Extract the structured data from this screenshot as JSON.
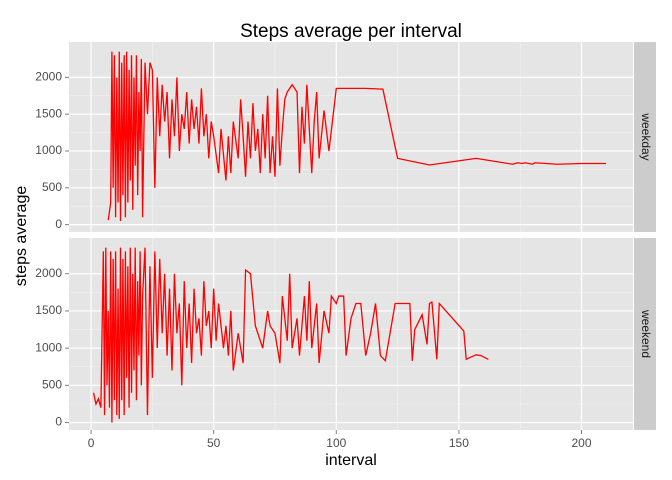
{
  "chart_data": {
    "type": "line",
    "title": "Steps average per interval",
    "x_label": "interval",
    "y_label": "steps average",
    "color": "#ff0000",
    "grid": true,
    "xlim": [
      -9,
      221
    ],
    "ylim": [
      -100,
      2480
    ],
    "xticks": [
      0,
      50,
      100,
      150,
      200
    ],
    "yticks": [
      0,
      500,
      1000,
      1500,
      2000
    ],
    "panels": [
      {
        "name": "weekday",
        "x": [
          7,
          8,
          8.5,
          9,
          9.5,
          10,
          10.5,
          11,
          11.5,
          12,
          12.5,
          13,
          13.5,
          14,
          14.5,
          15,
          15.5,
          16,
          16.5,
          17,
          17.5,
          18,
          18.5,
          19,
          19.5,
          20,
          20.5,
          21,
          22,
          23,
          24,
          25,
          26,
          27,
          28,
          29,
          30,
          31,
          32,
          33,
          34,
          35,
          36,
          37,
          38,
          39,
          40,
          41,
          42,
          43,
          44,
          45,
          46,
          47,
          48,
          49,
          50,
          52,
          53,
          55,
          56,
          57,
          58,
          60,
          61,
          62,
          63,
          64,
          65,
          66,
          67,
          68,
          69,
          70,
          71,
          72,
          73,
          74,
          75,
          76,
          77,
          78,
          79,
          80,
          82,
          84,
          85,
          86,
          87,
          88,
          90,
          91,
          92,
          93,
          95,
          97,
          100,
          112,
          119,
          125,
          138,
          157,
          172,
          174,
          176,
          177,
          180,
          181,
          190,
          200,
          210
        ],
        "values": [
          60,
          300,
          2350,
          500,
          2300,
          100,
          2000,
          300,
          2350,
          50,
          2200,
          400,
          2300,
          100,
          2350,
          300,
          2100,
          600,
          2300,
          200,
          2000,
          800,
          2300,
          400,
          1800,
          1000,
          2250,
          100,
          2200,
          1500,
          2200,
          2100,
          500,
          2000,
          1200,
          1900,
          1400,
          1800,
          900,
          1700,
          1200,
          2000,
          1000,
          1500,
          1300,
          1800,
          1100,
          1700,
          1300,
          1600,
          1100,
          1850,
          1200,
          1500,
          900,
          1400,
          1200,
          700,
          1300,
          600,
          1200,
          700,
          1400,
          900,
          1700,
          1200,
          650,
          1400,
          900,
          1650,
          1000,
          1300,
          700,
          1500,
          900,
          1750,
          700,
          1200,
          650,
          1850,
          800,
          1300,
          1700,
          1800,
          1900,
          1800,
          700,
          1600,
          1100,
          1900,
          700,
          1400,
          1800,
          900,
          1550,
          1000,
          1850,
          1850,
          1840,
          900,
          810,
          900,
          820,
          840,
          830,
          840,
          820,
          840,
          820,
          830,
          830
        ]
      },
      {
        "name": "weekend",
        "x": [
          1,
          2,
          3,
          4,
          5,
          5.5,
          6,
          6.5,
          7,
          7.5,
          8,
          8.5,
          9,
          9.5,
          10,
          10.5,
          11,
          11.5,
          12,
          12.5,
          13,
          13.5,
          14,
          14.5,
          15,
          15.5,
          16,
          16.5,
          17,
          17.5,
          18,
          18.5,
          19,
          19.5,
          20,
          20.5,
          21,
          22,
          23,
          24,
          25,
          26,
          27,
          28,
          29,
          30,
          31,
          32,
          33,
          34,
          35,
          36,
          37,
          38,
          39,
          40,
          41,
          42,
          43,
          44,
          45,
          46,
          47,
          48,
          49,
          50,
          51,
          52,
          54,
          55,
          56,
          57,
          58,
          60,
          62,
          63,
          65,
          67,
          68,
          70,
          72,
          73,
          75,
          77,
          78,
          80,
          81,
          82,
          84,
          85,
          87,
          88,
          89,
          90,
          92,
          93,
          95,
          97,
          98,
          100,
          101,
          103,
          104,
          106,
          108,
          110,
          112,
          114,
          115,
          116,
          118,
          120,
          124,
          130,
          131,
          132,
          135,
          137,
          138,
          139,
          141,
          142,
          152,
          153,
          157,
          159,
          162
        ],
        "values": [
          400,
          250,
          320,
          200,
          2300,
          100,
          2350,
          500,
          1500,
          200,
          2300,
          0,
          2200,
          300,
          2300,
          100,
          1800,
          50,
          2350,
          300,
          2200,
          100,
          2300,
          600,
          2100,
          200,
          2350,
          400,
          2000,
          700,
          2350,
          300,
          1900,
          900,
          2300,
          500,
          1700,
          2350,
          100,
          2100,
          600,
          2300,
          1000,
          2200,
          1200,
          2000,
          900,
          1800,
          700,
          2000,
          1200,
          1600,
          500,
          1900,
          1000,
          1600,
          800,
          1800,
          1200,
          1400,
          900,
          1900,
          1300,
          1500,
          1000,
          1800,
          1100,
          1600,
          1000,
          1300,
          900,
          1500,
          700,
          1200,
          800,
          2050,
          2000,
          1300,
          1200,
          1000,
          1500,
          1300,
          1200,
          800,
          1700,
          1100,
          2000,
          1000,
          1400,
          900,
          1700,
          1100,
          1900,
          1000,
          1600,
          800,
          1500,
          1200,
          1700,
          1600,
          1700,
          1700,
          900,
          1400,
          1600,
          1600,
          900,
          1200,
          1400,
          1600,
          900,
          830,
          1600,
          1600,
          830,
          1250,
          1450,
          1050,
          1600,
          1620,
          850,
          1600,
          1230,
          850,
          910,
          900,
          850
        ]
      }
    ]
  }
}
